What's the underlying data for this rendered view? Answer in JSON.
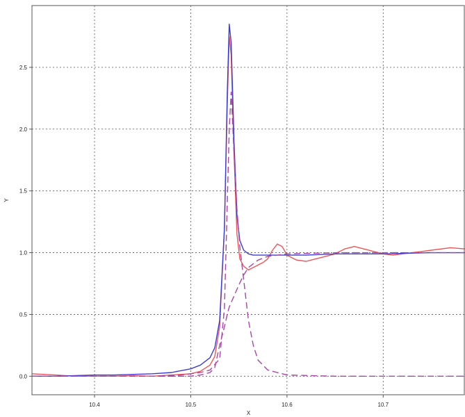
{
  "chart_data": {
    "type": "line",
    "xlabel": "X",
    "ylabel": "Y",
    "xlim": [
      10.335,
      10.785
    ],
    "ylim": [
      -0.15,
      3.0
    ],
    "x_ticks": [
      10.4,
      10.5,
      10.6,
      10.7
    ],
    "x_tick_labels": [
      "10.4",
      "10.5",
      "10.6",
      "10.7"
    ],
    "y_ticks": [
      0.0,
      0.5,
      1.0,
      1.5,
      2.0,
      2.5
    ],
    "y_tick_labels": [
      "0.0",
      "0.5",
      "1.0",
      "1.5",
      "2.0",
      "2.5"
    ],
    "grid": true,
    "legend": "none",
    "series": [
      {
        "color": "#ee5555",
        "style": "solid",
        "x": [
          10.335,
          10.36,
          10.38,
          10.4,
          10.42,
          10.44,
          10.46,
          10.48,
          10.5,
          10.51,
          10.52,
          10.525,
          10.53,
          10.535,
          10.538,
          10.54,
          10.542,
          10.545,
          10.548,
          10.551,
          10.555,
          10.56,
          10.565,
          10.57,
          10.575,
          10.58,
          10.585,
          10.59,
          10.595,
          10.6,
          10.605,
          10.61,
          10.62,
          10.63,
          10.64,
          10.65,
          10.66,
          10.67,
          10.68,
          10.69,
          10.7,
          10.71,
          10.72,
          10.73,
          10.74,
          10.75,
          10.76,
          10.77,
          10.785
        ],
        "y": [
          0.02,
          0.01,
          0.0,
          0.0,
          0.0,
          0.005,
          0.0,
          0.01,
          0.02,
          0.04,
          0.09,
          0.16,
          0.4,
          1.2,
          2.2,
          2.75,
          2.6,
          1.8,
          1.15,
          0.95,
          0.89,
          0.86,
          0.88,
          0.9,
          0.92,
          0.95,
          1.02,
          1.07,
          1.05,
          0.98,
          0.96,
          0.94,
          0.93,
          0.95,
          0.97,
          0.99,
          1.03,
          1.05,
          1.03,
          1.01,
          0.99,
          0.98,
          0.99,
          1.0,
          1.01,
          1.02,
          1.03,
          1.04,
          1.03
        ]
      },
      {
        "color": "#3b3bdd",
        "style": "solid",
        "x": [
          10.335,
          10.36,
          10.38,
          10.4,
          10.42,
          10.44,
          10.46,
          10.48,
          10.49,
          10.5,
          10.51,
          10.52,
          10.525,
          10.53,
          10.535,
          10.538,
          10.54,
          10.542,
          10.545,
          10.548,
          10.551,
          10.555,
          10.56,
          10.565,
          10.57,
          10.58,
          10.6,
          10.62,
          10.65,
          10.7,
          10.75,
          10.785
        ],
        "y": [
          0.0,
          0.0,
          0.005,
          0.01,
          0.01,
          0.015,
          0.02,
          0.03,
          0.045,
          0.06,
          0.09,
          0.15,
          0.23,
          0.45,
          1.2,
          2.3,
          2.85,
          2.7,
          1.9,
          1.3,
          1.1,
          1.02,
          0.99,
          0.98,
          0.98,
          0.98,
          0.98,
          0.98,
          0.99,
          0.99,
          1.0,
          1.0
        ]
      },
      {
        "color": "#aa44aa",
        "style": "dashed",
        "x": [
          10.335,
          10.4,
          10.46,
          10.49,
          10.5,
          10.51,
          10.52,
          10.53,
          10.535,
          10.538,
          10.54,
          10.542,
          10.545,
          10.548,
          10.551,
          10.555,
          10.56,
          10.565,
          10.57,
          10.58,
          10.6,
          10.65,
          10.7,
          10.785
        ],
        "y": [
          0.0,
          0.0,
          0.0,
          0.01,
          0.02,
          0.03,
          0.05,
          0.14,
          0.55,
          1.4,
          2.0,
          2.3,
          1.8,
          1.35,
          1.05,
          0.78,
          0.45,
          0.25,
          0.13,
          0.05,
          0.01,
          0.0,
          0.0,
          0.0
        ]
      },
      {
        "color": "#aa44aa",
        "style": "dashed",
        "x": [
          10.335,
          10.4,
          10.46,
          10.5,
          10.51,
          10.52,
          10.525,
          10.53,
          10.535,
          10.538,
          10.54,
          10.545,
          10.55,
          10.555,
          10.56,
          10.57,
          10.58,
          10.6,
          10.65,
          10.7,
          10.785
        ],
        "y": [
          0.0,
          0.0,
          0.0,
          0.0,
          0.01,
          0.03,
          0.07,
          0.25,
          0.4,
          0.5,
          0.56,
          0.65,
          0.74,
          0.82,
          0.88,
          0.94,
          0.97,
          0.99,
          1.0,
          1.0,
          1.0
        ]
      }
    ]
  }
}
